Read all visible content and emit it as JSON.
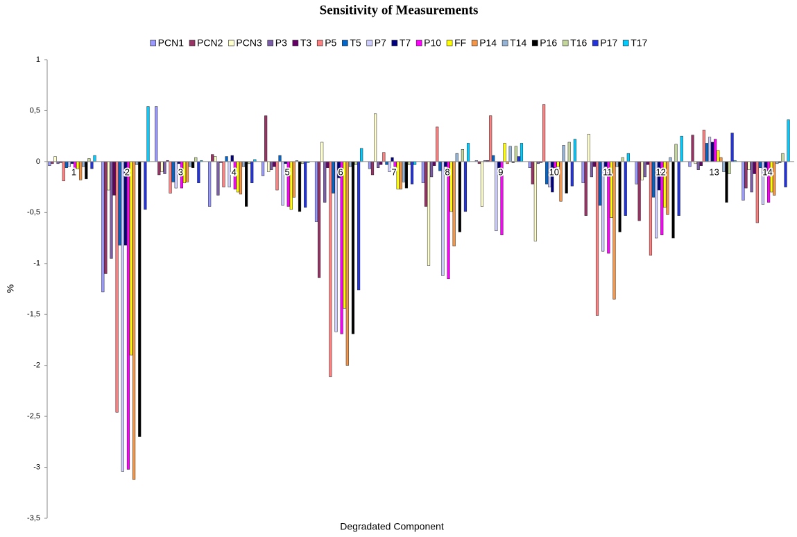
{
  "chart_data": {
    "type": "bar",
    "title": "Sensitivity  of Measurements",
    "x_label": "Degradated Component",
    "y_label": "%",
    "categories": [
      "1",
      "2",
      "3",
      "4",
      "5",
      "6",
      "7",
      "8",
      "9",
      "10",
      "11",
      "12",
      "13",
      "14"
    ],
    "ylim": [
      -3.5,
      1
    ],
    "yticks": [
      1,
      {
        "value": 0.5,
        "label": "0,5"
      },
      0,
      {
        "value": -0.5,
        "label": "-0,5"
      },
      -1,
      {
        "value": -1.5,
        "label": "-1,5"
      },
      -2,
      {
        "value": -2.5,
        "label": "-2,5"
      },
      -3,
      {
        "value": -3.5,
        "label": "-3,5"
      }
    ],
    "legend_position": "top",
    "series": [
      {
        "name": "PCN1",
        "color": "#9999ff",
        "values": [
          -0.04,
          -1.28,
          0.54,
          -0.44,
          -0.14,
          -0.59,
          -0.07,
          -0.21,
          0.01,
          -0.06,
          -0.21,
          -0.22,
          -0.05,
          -0.38
        ]
      },
      {
        "name": "PCN2",
        "color": "#993366",
        "values": [
          -0.02,
          -1.1,
          -0.13,
          0.07,
          0.45,
          -1.14,
          -0.13,
          -0.44,
          -0.02,
          -0.22,
          -0.53,
          -0.58,
          0.26,
          -0.26
        ]
      },
      {
        "name": "PCN3",
        "color": "#ffffcc",
        "values": [
          0.05,
          -0.28,
          -0.1,
          0.05,
          -0.1,
          0.19,
          0.47,
          -1.02,
          -0.44,
          -0.78,
          0.27,
          -0.18,
          -0.02,
          -0.08
        ]
      },
      {
        "name": "P3",
        "color": "#7b5ea7",
        "values": [
          -0.02,
          -0.95,
          -0.12,
          -0.33,
          -0.08,
          -0.4,
          -0.06,
          -0.15,
          0.01,
          -0.02,
          -0.15,
          -0.15,
          -0.08,
          -0.3
        ]
      },
      {
        "name": "T3",
        "color": "#660066",
        "values": [
          -0.01,
          -0.33,
          0.01,
          -0.01,
          -0.05,
          -0.06,
          -0.03,
          -0.04,
          0.01,
          -0.01,
          -0.05,
          -0.03,
          -0.04,
          -0.12
        ]
      },
      {
        "name": "P5",
        "color": "#ff8080",
        "values": [
          -0.19,
          -2.46,
          -0.31,
          -0.25,
          -0.28,
          -2.11,
          0.09,
          0.34,
          0.45,
          0.56,
          -1.51,
          -0.92,
          0.31,
          -0.6
        ]
      },
      {
        "name": "T5",
        "color": "#0066cc",
        "values": [
          -0.06,
          -0.82,
          -0.2,
          0.05,
          0.06,
          -0.31,
          -0.03,
          -0.09,
          0.06,
          -0.22,
          -0.43,
          -0.35,
          0.18,
          -0.06
        ]
      },
      {
        "name": "P7",
        "color": "#ccccff",
        "values": [
          -0.05,
          -3.04,
          -0.26,
          -0.25,
          -0.43,
          -1.67,
          -0.1,
          -1.12,
          -0.68,
          -0.25,
          -0.88,
          -0.75,
          0.24,
          -0.42
        ]
      },
      {
        "name": "T7",
        "color": "#000080",
        "values": [
          -0.02,
          -0.82,
          -0.02,
          0.06,
          -0.02,
          -0.16,
          0.04,
          -0.05,
          -0.06,
          -0.3,
          -0.05,
          -0.28,
          0.19,
          -0.13
        ]
      },
      {
        "name": "P10",
        "color": "#ff00ff",
        "values": [
          -0.07,
          -3.02,
          -0.26,
          -0.27,
          -0.44,
          -1.69,
          -0.05,
          -1.15,
          -0.72,
          -0.06,
          -0.9,
          -0.72,
          0.22,
          -0.4
        ]
      },
      {
        "name": "FF",
        "color": "#ffff00",
        "values": [
          -0.07,
          -1.9,
          -0.21,
          -0.3,
          -0.47,
          -1.44,
          -0.27,
          -0.49,
          0.18,
          -0.05,
          -0.55,
          -0.45,
          0.11,
          -0.3
        ]
      },
      {
        "name": "P14",
        "color": "#f79646",
        "values": [
          -0.18,
          -3.12,
          -0.2,
          -0.32,
          -0.35,
          -2.0,
          -0.27,
          -0.83,
          -0.02,
          -0.39,
          -1.35,
          -0.52,
          0.04,
          -0.33
        ]
      },
      {
        "name": "T14",
        "color": "#95b3d7",
        "values": [
          -0.05,
          -0.03,
          -0.05,
          -0.05,
          0.01,
          -0.05,
          -0.2,
          0.08,
          0.15,
          0.16,
          -0.05,
          0.04,
          -0.1,
          -0.02
        ]
      },
      {
        "name": "P16",
        "color": "#000000",
        "values": [
          -0.17,
          -2.7,
          -0.06,
          -0.44,
          -0.49,
          -1.69,
          -0.26,
          -0.69,
          -0.01,
          -0.31,
          -0.69,
          -0.75,
          -0.4,
          -0.01
        ]
      },
      {
        "name": "T16",
        "color": "#c4d79b",
        "values": [
          0.03,
          0.0,
          0.04,
          -0.02,
          -0.02,
          -0.03,
          -0.03,
          0.12,
          0.15,
          0.19,
          0.04,
          0.17,
          -0.12,
          0.08
        ]
      },
      {
        "name": "P17",
        "color": "#2233dd",
        "values": [
          -0.07,
          -0.47,
          -0.21,
          -0.21,
          -0.45,
          -1.26,
          -0.22,
          -0.49,
          0.05,
          -0.24,
          -0.53,
          -0.53,
          0.28,
          -0.25
        ]
      },
      {
        "name": "T17",
        "color": "#00ccff",
        "values": [
          0.06,
          0.54,
          0.01,
          0.02,
          -0.01,
          0.13,
          -0.03,
          0.18,
          0.18,
          0.22,
          0.08,
          0.25,
          0.01,
          0.41
        ]
      }
    ]
  }
}
